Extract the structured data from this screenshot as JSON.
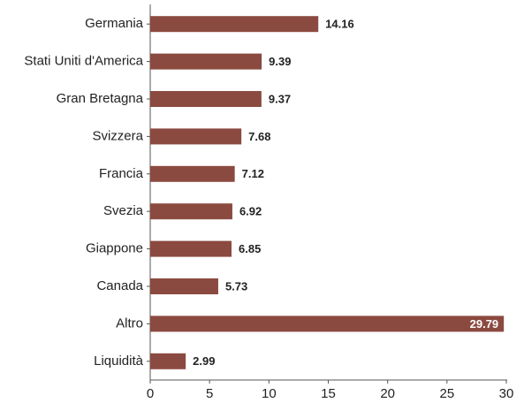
{
  "chart_data": {
    "type": "barh",
    "categories": [
      "Germania",
      "Stati Uniti d'America",
      "Gran Bretagna",
      "Svizzera",
      "Francia",
      "Svezia",
      "Giappone",
      "Canada",
      "Altro",
      "Liquidità"
    ],
    "values": [
      14.16,
      9.39,
      9.37,
      7.68,
      7.12,
      6.92,
      6.85,
      5.73,
      29.79,
      2.99
    ],
    "color": "#8b4a40",
    "xlim": [
      0,
      30
    ],
    "xticks": [
      0,
      5,
      10,
      15,
      20,
      25,
      30
    ],
    "grid": false
  }
}
